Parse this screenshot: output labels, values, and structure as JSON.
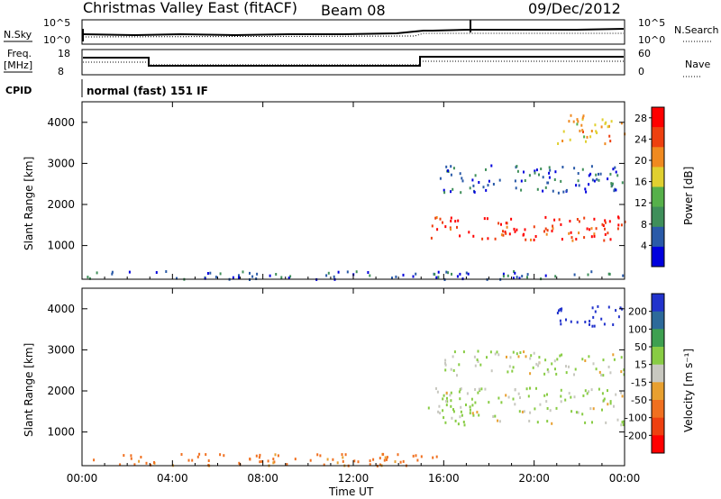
{
  "header": {
    "station": "Christmas Valley East (fitACF)",
    "beam": "Beam 08",
    "date": "09/Dec/2012"
  },
  "labels": {
    "n_sky": "N.Sky",
    "n_search": "N.Search",
    "freq": "Freq.",
    "mhz": "[MHz]",
    "nave": "Nave",
    "cpid": "CPID",
    "cpid_value": "normal (fast) 151 IF",
    "nsky_tick_top": "10^5",
    "nsky_tick_bottom": "10^0",
    "freq_tick_top": "18",
    "freq_tick_bottom": "8",
    "nave_tick_top": "60",
    "nave_tick_bottom": "0",
    "ylabel": "Slant Range [km]",
    "xlabel": "Time UT",
    "power_label": "Power [dB]",
    "velocity_label": "Velocity [m s⁻¹]"
  },
  "colors": {
    "power": [
      "#0000dd",
      "#2a5aa8",
      "#3f8f5a",
      "#56b04a",
      "#e0d030",
      "#f08a20",
      "#ee4010",
      "#ff0000"
    ],
    "velocity": [
      "#2233cc",
      "#2d6a9a",
      "#3ea050",
      "#88cc44",
      "#c8c8c0",
      "#e8a030",
      "#f07020",
      "#ee4010",
      "#ff0000"
    ]
  },
  "chart_data": [
    {
      "type": "heatmap",
      "quantity": "Power",
      "xlabel": "Time UT",
      "ylabel": "Slant Range [km]",
      "xlim_hours": [
        0,
        24
      ],
      "ylim_km": [
        180,
        4500
      ],
      "x_ticks": [
        "00:00",
        "04:00",
        "08:00",
        "12:00",
        "16:00",
        "20:00",
        "00:00"
      ],
      "y_ticks": [
        1000,
        2000,
        3000,
        4000
      ],
      "colorbar_label": "Power [dB]",
      "colorbar_ticks": [
        4,
        8,
        12,
        16,
        20,
        24,
        28
      ],
      "colorbar_range": [
        0,
        30
      ],
      "features": [
        {
          "description": "near-range scatter",
          "t_start": 0,
          "t_end": 24,
          "range_km": [
            200,
            400
          ],
          "power_db": 6
        },
        {
          "description": "strong band",
          "t_start": 15.3,
          "t_end": 24,
          "range_km": [
            1150,
            1750
          ],
          "power_db": 26
        },
        {
          "description": "secondary band",
          "t_start": 15.8,
          "t_end": 24,
          "range_km": [
            2300,
            3000
          ],
          "power_db": 6
        },
        {
          "description": "far echoes",
          "t_start": 21,
          "t_end": 24,
          "range_km": [
            3500,
            4200
          ],
          "power_db": 18
        }
      ]
    },
    {
      "type": "heatmap",
      "quantity": "Velocity",
      "xlabel": "Time UT",
      "ylabel": "Slant Range [km]",
      "xlim_hours": [
        0,
        24
      ],
      "ylim_km": [
        180,
        4500
      ],
      "x_ticks": [
        "00:00",
        "04:00",
        "08:00",
        "12:00",
        "16:00",
        "20:00",
        "00:00"
      ],
      "y_ticks": [
        1000,
        2000,
        3000,
        4000
      ],
      "colorbar_label": "Velocity [m s⁻¹]",
      "colorbar_ticks": [
        200,
        100,
        50,
        15,
        -15,
        -50,
        -100,
        -200
      ],
      "colorbar_range": [
        -250,
        250
      ],
      "features": [
        {
          "description": "near-range flow",
          "t_start": 0,
          "t_end": 16,
          "range_km": [
            200,
            500
          ],
          "velocity": -60
        },
        {
          "description": "ground scatter band",
          "t_start": 15.3,
          "t_end": 24,
          "range_km": [
            1200,
            2100
          ],
          "velocity": 0
        },
        {
          "description": "secondary band",
          "t_start": 16,
          "t_end": 24,
          "range_km": [
            2400,
            3000
          ],
          "velocity": 0
        },
        {
          "description": "far echoes",
          "t_start": 21,
          "t_end": 24,
          "range_km": [
            3600,
            4100
          ],
          "velocity": 200
        }
      ]
    }
  ]
}
